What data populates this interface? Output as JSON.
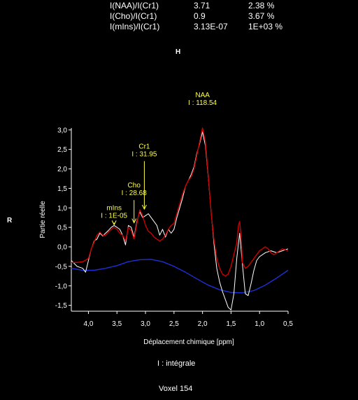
{
  "ratios": [
    {
      "label": "I(NAA)/I(Cr1)",
      "value": "3.71",
      "error": "2.38 %"
    },
    {
      "label": "I(Cho)/I(Cr1)",
      "value": "0.9",
      "error": "3.67 %"
    },
    {
      "label": "I(mIns)/I(Cr1)",
      "value": "3.13E-07",
      "error": "1E+03 %"
    }
  ],
  "orientation": {
    "top": "H",
    "left": "R"
  },
  "legend_text": "I : intégrale",
  "voxel_label": "Voxel 154",
  "colors": {
    "background": "#000000",
    "spectrum": "#ffffff",
    "fit": "#cc0000",
    "baseline": "#1f2fd6",
    "peak_label": "#ffff44",
    "axis": "#ffffff"
  },
  "chart_data": {
    "type": "line",
    "xlabel": "Déplacement chimique [ppm]",
    "ylabel": "Partie réelle",
    "xlim": [
      4.3,
      0.5
    ],
    "ylim": [
      -1.65,
      3.05
    ],
    "x_reversed": true,
    "x_ticks": [
      {
        "v": 4.0,
        "label": "4,0"
      },
      {
        "v": 3.5,
        "label": "3,5"
      },
      {
        "v": 3.0,
        "label": "3,0"
      },
      {
        "v": 2.5,
        "label": "2,5"
      },
      {
        "v": 2.0,
        "label": "2,0"
      },
      {
        "v": 1.5,
        "label": "1,5"
      },
      {
        "v": 1.0,
        "label": "1,0"
      },
      {
        "v": 0.5,
        "label": "0,5"
      }
    ],
    "y_ticks": [
      {
        "v": 3.0,
        "label": "3,0"
      },
      {
        "v": 2.5,
        "label": "2,5"
      },
      {
        "v": 2.0,
        "label": "2,0"
      },
      {
        "v": 1.5,
        "label": "1,5"
      },
      {
        "v": 1.0,
        "label": "1,0"
      },
      {
        "v": 0.5,
        "label": "0,5"
      },
      {
        "v": 0.0,
        "label": "0,0"
      },
      {
        "v": -0.5,
        "label": "-0,5"
      },
      {
        "v": -1.0,
        "label": "-1,0"
      },
      {
        "v": -1.5,
        "label": "-1,5"
      }
    ],
    "series": [
      {
        "key": "spectrum",
        "x": [
          4.3,
          4.2,
          4.1,
          4.05,
          4.0,
          3.95,
          3.9,
          3.85,
          3.8,
          3.75,
          3.7,
          3.65,
          3.6,
          3.55,
          3.5,
          3.45,
          3.4,
          3.35,
          3.3,
          3.25,
          3.2,
          3.15,
          3.1,
          3.05,
          3.0,
          2.95,
          2.9,
          2.85,
          2.8,
          2.75,
          2.7,
          2.65,
          2.6,
          2.55,
          2.5,
          2.45,
          2.4,
          2.35,
          2.3,
          2.25,
          2.2,
          2.15,
          2.1,
          2.05,
          2.0,
          1.95,
          1.9,
          1.85,
          1.8,
          1.75,
          1.7,
          1.65,
          1.6,
          1.55,
          1.5,
          1.45,
          1.4,
          1.35,
          1.3,
          1.25,
          1.2,
          1.15,
          1.1,
          1.05,
          1.0,
          0.9,
          0.8,
          0.7,
          0.6,
          0.5
        ],
        "y": [
          -0.35,
          -0.5,
          -0.55,
          -0.65,
          -0.35,
          -0.05,
          0.15,
          0.2,
          0.35,
          0.28,
          0.35,
          0.42,
          0.5,
          0.55,
          0.5,
          0.45,
          0.3,
          0.05,
          0.55,
          0.5,
          0.25,
          0.65,
          0.9,
          0.75,
          0.8,
          0.85,
          0.75,
          0.65,
          0.55,
          0.3,
          0.45,
          0.25,
          0.45,
          0.35,
          0.45,
          0.75,
          1.0,
          1.25,
          1.55,
          1.7,
          1.85,
          2.05,
          2.4,
          2.65,
          2.95,
          2.6,
          1.8,
          0.9,
          0.1,
          -0.55,
          -0.9,
          -1.15,
          -1.35,
          -1.55,
          -1.62,
          -1.2,
          -0.3,
          0.35,
          -0.45,
          -1.2,
          -1.25,
          -0.95,
          -0.6,
          -0.35,
          -0.25,
          -0.15,
          -0.1,
          -0.15,
          -0.1,
          -0.05
        ]
      },
      {
        "key": "fit",
        "x": [
          4.3,
          4.2,
          4.1,
          4.0,
          3.95,
          3.9,
          3.85,
          3.8,
          3.75,
          3.7,
          3.65,
          3.6,
          3.55,
          3.5,
          3.45,
          3.4,
          3.35,
          3.3,
          3.25,
          3.2,
          3.15,
          3.1,
          3.05,
          3.0,
          2.95,
          2.9,
          2.85,
          2.8,
          2.75,
          2.7,
          2.65,
          2.6,
          2.55,
          2.5,
          2.45,
          2.4,
          2.35,
          2.3,
          2.25,
          2.2,
          2.15,
          2.1,
          2.05,
          2.0,
          1.95,
          1.9,
          1.85,
          1.8,
          1.75,
          1.7,
          1.65,
          1.6,
          1.55,
          1.5,
          1.45,
          1.4,
          1.37,
          1.35,
          1.32,
          1.3,
          1.25,
          1.2,
          1.15,
          1.1,
          1.05,
          1.0,
          0.9,
          0.85,
          0.8,
          0.75,
          0.7,
          0.6,
          0.5
        ],
        "y": [
          -0.4,
          -0.4,
          -0.38,
          -0.3,
          -0.05,
          0.12,
          0.3,
          0.38,
          0.3,
          0.3,
          0.38,
          0.45,
          0.5,
          0.45,
          0.35,
          0.3,
          0.15,
          0.5,
          0.42,
          0.2,
          0.6,
          0.95,
          0.8,
          0.55,
          0.4,
          0.35,
          0.25,
          0.2,
          0.15,
          0.2,
          0.3,
          0.45,
          0.55,
          0.6,
          0.85,
          1.1,
          1.35,
          1.55,
          1.7,
          1.8,
          2.0,
          2.35,
          2.7,
          3.05,
          2.7,
          1.85,
          0.9,
          0.2,
          -0.3,
          -0.55,
          -0.7,
          -0.75,
          -0.7,
          -0.5,
          -0.2,
          0.1,
          0.55,
          0.65,
          0.2,
          -0.4,
          -0.55,
          -0.5,
          -0.4,
          -0.3,
          -0.2,
          -0.1,
          0.0,
          -0.05,
          -0.15,
          -0.2,
          -0.15,
          -0.05,
          -0.1
        ]
      },
      {
        "key": "baseline",
        "x": [
          4.3,
          4.1,
          3.9,
          3.7,
          3.5,
          3.3,
          3.1,
          2.9,
          2.7,
          2.5,
          2.3,
          2.1,
          1.9,
          1.7,
          1.5,
          1.3,
          1.1,
          0.9,
          0.7,
          0.5
        ],
        "y": [
          -0.55,
          -0.6,
          -0.6,
          -0.55,
          -0.48,
          -0.38,
          -0.33,
          -0.32,
          -0.38,
          -0.5,
          -0.65,
          -0.82,
          -0.98,
          -1.1,
          -1.17,
          -1.18,
          -1.12,
          -0.98,
          -0.8,
          -0.6
        ]
      }
    ],
    "annotations": [
      {
        "name": "NAA",
        "label": "NAA",
        "value": "I : 118.54",
        "x": 2.0,
        "y": 3.05,
        "ax": 2.0,
        "ay": 3.52
      },
      {
        "name": "Cr1",
        "label": "Cr1",
        "value": "I : 31.95",
        "x": 3.02,
        "y": 0.95,
        "ax": 3.02,
        "ay": 2.2
      },
      {
        "name": "Cho",
        "label": "Cho",
        "value": "I : 28.68",
        "x": 3.2,
        "y": 0.6,
        "ax": 3.2,
        "ay": 1.2
      },
      {
        "name": "mIns",
        "label": "mIns",
        "value": "I : 1E-05",
        "x": 3.55,
        "y": 0.55,
        "ax": 3.55,
        "ay": 0.62
      }
    ]
  }
}
